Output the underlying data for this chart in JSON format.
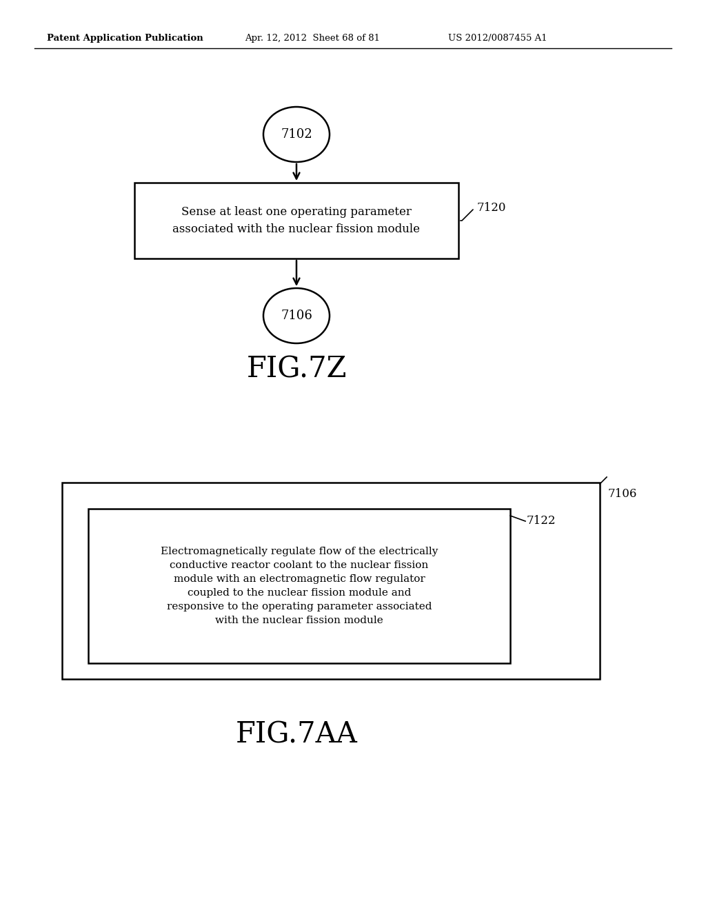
{
  "background_color": "#ffffff",
  "header_text": "Patent Application Publication",
  "header_date": "Apr. 12, 2012  Sheet 68 of 81",
  "header_patent": "US 2012/0087455 A1",
  "fig1_title": "FIG.7Z",
  "fig2_title": "FIG.7AA",
  "circle1_label": "7102",
  "circle2_label": "7106",
  "box1_text": "Sense at least one operating parameter\nassociated with the nuclear fission module",
  "box1_ref": "7120",
  "outer_box_ref": "7106",
  "inner_box_ref": "7122",
  "inner_box_text": "Electromagnetically regulate flow of the electrically\nconductive reactor coolant to the nuclear fission\nmodule with an electromagnetic flow regulator\ncoupled to the nuclear fission module and\nresponsive to the operating parameter associated\nwith the nuclear fission module"
}
